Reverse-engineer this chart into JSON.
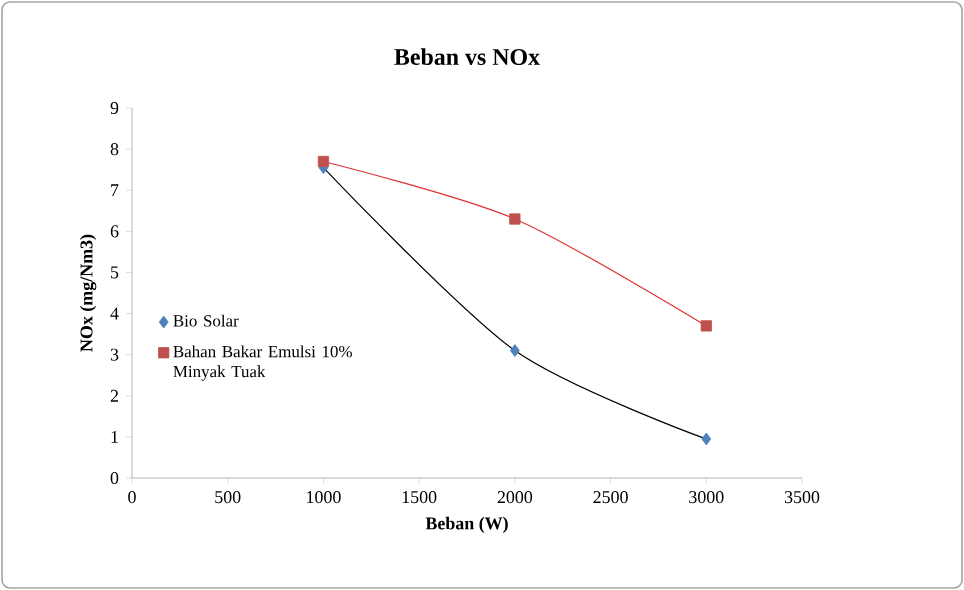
{
  "chart_data": {
    "type": "scatter",
    "title": "Beban vs NOx",
    "xlabel": "Beban (W)",
    "ylabel": "NOx (mg/Nm3)",
    "xlim": [
      0,
      3500
    ],
    "xticks": [
      0,
      500,
      1000,
      1500,
      2000,
      2500,
      3000,
      3500
    ],
    "ylim": [
      0,
      9
    ],
    "yticks": [
      0,
      1,
      2,
      3,
      4,
      5,
      6,
      7,
      8,
      9
    ],
    "grid": false,
    "legend": "left",
    "series": [
      {
        "name": "Bio Solar",
        "marker": "diamond",
        "color": "#4f81bd",
        "x": [
          1000,
          2000,
          3000
        ],
        "values": [
          7.55,
          3.1,
          0.95
        ]
      },
      {
        "name": "Bahan Bakar Emulsi 10% Minyak Tuak",
        "marker": "square",
        "color": "#c0504d",
        "x": [
          1000,
          2000,
          3000
        ],
        "values": [
          7.7,
          6.3,
          3.7
        ]
      },
      {
        "type": "line",
        "color": "#000000",
        "x": [
          1000,
          2000,
          3000
        ],
        "values": [
          7.55,
          3.1,
          0.95
        ]
      },
      {
        "type": "line",
        "color": "#e03030",
        "x": [
          1000,
          2000,
          3000
        ],
        "values": [
          7.7,
          6.3,
          3.7
        ]
      }
    ]
  }
}
